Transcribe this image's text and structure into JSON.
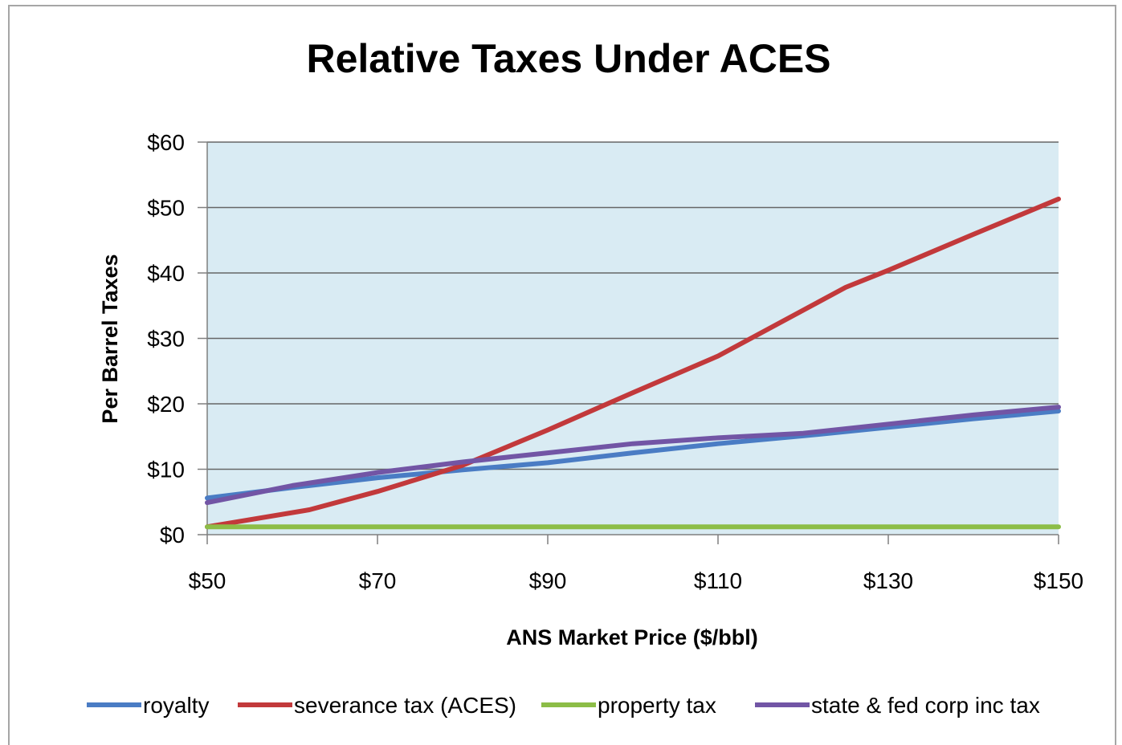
{
  "chart_data": {
    "type": "line",
    "title": "Relative Taxes Under ACES",
    "xlabel": "ANS Market Price ($/bbl)",
    "ylabel": "Per Barrel Taxes",
    "xlim": [
      50,
      150
    ],
    "ylim": [
      0,
      60
    ],
    "x_ticks": [
      50,
      70,
      90,
      110,
      130,
      150
    ],
    "x_tick_labels": [
      "$50",
      "$70",
      "$90",
      "$110",
      "$130",
      "$150"
    ],
    "y_ticks": [
      0,
      10,
      20,
      30,
      40,
      50,
      60
    ],
    "y_tick_labels": [
      "$0",
      "$10",
      "$20",
      "$30",
      "$40",
      "$50",
      "$60"
    ],
    "grid": "horizontal",
    "plot_background": "#d9ebf3",
    "legend_position": "bottom",
    "series": [
      {
        "name": "royalty",
        "color": "#4a7cc4",
        "points": [
          [
            50,
            5.6
          ],
          [
            60,
            7.2
          ],
          [
            70,
            8.7
          ],
          [
            80,
            9.9
          ],
          [
            90,
            11.0
          ],
          [
            100,
            12.5
          ],
          [
            110,
            13.9
          ],
          [
            120,
            15.1
          ],
          [
            130,
            16.4
          ],
          [
            140,
            17.7
          ],
          [
            150,
            18.9
          ]
        ]
      },
      {
        "name": "severance tax (ACES)",
        "color": "#c2393b",
        "points": [
          [
            50,
            1.2
          ],
          [
            62,
            3.8
          ],
          [
            70,
            6.6
          ],
          [
            80,
            10.6
          ],
          [
            90,
            16.0
          ],
          [
            100,
            21.7
          ],
          [
            110,
            27.3
          ],
          [
            125,
            37.8
          ],
          [
            130,
            40.4
          ],
          [
            140,
            45.9
          ],
          [
            150,
            51.3
          ]
        ]
      },
      {
        "name": "property tax",
        "color": "#8cbd47",
        "points": [
          [
            50,
            1.2
          ],
          [
            100,
            1.2
          ],
          [
            150,
            1.2
          ]
        ]
      },
      {
        "name": "state & fed corp inc tax",
        "color": "#7255a5",
        "points": [
          [
            50,
            4.9
          ],
          [
            60,
            7.5
          ],
          [
            70,
            9.5
          ],
          [
            80,
            11.1
          ],
          [
            90,
            12.5
          ],
          [
            100,
            13.9
          ],
          [
            110,
            14.8
          ],
          [
            120,
            15.5
          ],
          [
            130,
            16.9
          ],
          [
            140,
            18.3
          ],
          [
            150,
            19.5
          ]
        ]
      }
    ]
  }
}
